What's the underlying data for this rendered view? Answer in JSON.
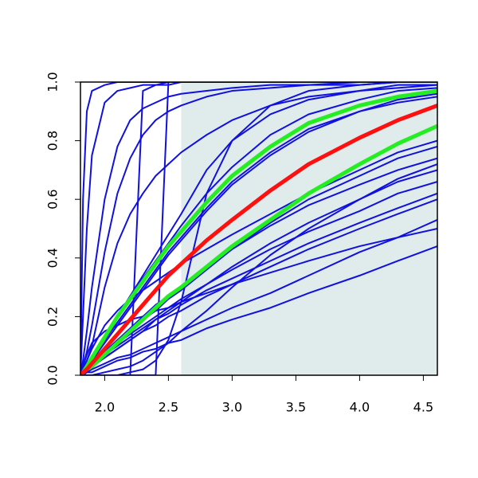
{
  "chart_data": {
    "type": "line",
    "x": [
      1.81,
      1.83,
      1.86,
      1.9,
      2.0,
      2.1,
      2.2,
      2.3,
      2.4,
      2.5,
      2.6,
      2.8,
      3.0,
      3.3,
      3.6,
      4.0,
      4.3,
      4.61
    ],
    "xlim": [
      1.81,
      4.61
    ],
    "ylim": [
      0,
      1
    ],
    "xticks": [
      {
        "value": 2,
        "label": "2.0"
      },
      {
        "value": 2.5,
        "label": "2.5"
      },
      {
        "value": 3,
        "label": "3.0"
      },
      {
        "value": 3.5,
        "label": "3.5"
      },
      {
        "value": 4,
        "label": "4.0"
      },
      {
        "value": 4.5,
        "label": "4.5"
      }
    ],
    "yticks": [
      {
        "value": 0,
        "label": "0.0"
      },
      {
        "value": 0.2,
        "label": "0.2"
      },
      {
        "value": 0.4,
        "label": "0.4"
      },
      {
        "value": 0.6,
        "label": "0.6"
      },
      {
        "value": 0.8,
        "label": "0.8"
      },
      {
        "value": 1,
        "label": "1.0"
      }
    ],
    "shade_from": 2.6,
    "shade_color": "#e0ebeb",
    "series": [
      {
        "color": "#1010e0",
        "line_width": 2,
        "values": [
          0,
          0.6,
          0.9,
          0.97,
          0.99,
          1,
          1,
          1,
          1,
          1,
          1,
          1,
          1,
          1,
          1,
          1,
          1,
          1
        ]
      },
      {
        "color": "#1010e0",
        "line_width": 2,
        "values": [
          0,
          0.2,
          0.5,
          0.75,
          0.93,
          0.97,
          0.98,
          0.99,
          0.99,
          0.99,
          1,
          1,
          1,
          1,
          1,
          1,
          1,
          1
        ]
      },
      {
        "color": "#1010e0",
        "line_width": 2,
        "values": [
          0,
          0.05,
          0.15,
          0.3,
          0.6,
          0.78,
          0.87,
          0.91,
          0.93,
          0.95,
          0.96,
          0.97,
          0.98,
          0.99,
          0.99,
          1,
          1,
          1
        ]
      },
      {
        "color": "#1010e0",
        "line_width": 2,
        "values": [
          0,
          0.03,
          0.08,
          0.17,
          0.42,
          0.62,
          0.74,
          0.82,
          0.87,
          0.9,
          0.92,
          0.95,
          0.97,
          0.98,
          0.99,
          0.99,
          1,
          1
        ]
      },
      {
        "color": "#1010e0",
        "line_width": 2,
        "values": [
          0,
          0,
          0,
          0,
          0,
          0,
          0,
          0.97,
          0.99,
          1,
          1,
          1,
          1,
          1,
          1,
          1,
          1,
          1
        ]
      },
      {
        "color": "#1010e0",
        "line_width": 2,
        "values": [
          0,
          0,
          0,
          0,
          0,
          0,
          0,
          0,
          0,
          1,
          1,
          1,
          1,
          1,
          1,
          1,
          1,
          1
        ]
      },
      {
        "color": "#1010e0",
        "line_width": 2,
        "values": [
          0,
          0,
          0,
          0,
          0,
          0,
          0.01,
          0.02,
          0.05,
          0.12,
          0.25,
          0.62,
          0.8,
          0.92,
          0.97,
          0.99,
          1,
          1
        ]
      },
      {
        "color": "#1010e0",
        "line_width": 2,
        "values": [
          0,
          0.01,
          0.03,
          0.06,
          0.13,
          0.2,
          0.27,
          0.34,
          0.41,
          0.48,
          0.55,
          0.7,
          0.8,
          0.89,
          0.94,
          0.97,
          0.99,
          0.99
        ]
      },
      {
        "color": "#1010e0",
        "line_width": 2,
        "values": [
          0,
          0.01,
          0.03,
          0.05,
          0.11,
          0.17,
          0.23,
          0.29,
          0.35,
          0.41,
          0.46,
          0.56,
          0.65,
          0.75,
          0.83,
          0.9,
          0.94,
          0.96
        ]
      },
      {
        "color": "#1010e0",
        "line_width": 2,
        "values": [
          0,
          0,
          0.01,
          0.01,
          0.03,
          0.05,
          0.06,
          0.08,
          0.09,
          0.11,
          0.12,
          0.16,
          0.19,
          0.23,
          0.28,
          0.34,
          0.39,
          0.44
        ]
      },
      {
        "color": "#1010e0",
        "line_width": 2,
        "values": [
          0,
          0,
          0.01,
          0.02,
          0.04,
          0.06,
          0.07,
          0.09,
          0.11,
          0.13,
          0.15,
          0.19,
          0.23,
          0.28,
          0.34,
          0.42,
          0.47,
          0.53
        ]
      },
      {
        "color": "#1010e0",
        "line_width": 2,
        "values": [
          0,
          0.01,
          0.02,
          0.03,
          0.06,
          0.09,
          0.12,
          0.15,
          0.17,
          0.2,
          0.22,
          0.27,
          0.31,
          0.37,
          0.43,
          0.5,
          0.55,
          0.6
        ]
      },
      {
        "color": "#1010e0",
        "line_width": 2,
        "values": [
          0,
          0.01,
          0.02,
          0.04,
          0.07,
          0.11,
          0.14,
          0.17,
          0.2,
          0.23,
          0.26,
          0.31,
          0.36,
          0.43,
          0.49,
          0.56,
          0.62,
          0.66
        ]
      },
      {
        "color": "#1010e0",
        "line_width": 2,
        "values": [
          0,
          0.01,
          0.02,
          0.03,
          0.06,
          0.09,
          0.12,
          0.15,
          0.19,
          0.22,
          0.25,
          0.31,
          0.37,
          0.45,
          0.52,
          0.6,
          0.66,
          0.7
        ]
      },
      {
        "color": "#1010e0",
        "line_width": 2,
        "values": [
          0,
          0.01,
          0.02,
          0.04,
          0.08,
          0.12,
          0.16,
          0.2,
          0.24,
          0.27,
          0.3,
          0.37,
          0.43,
          0.51,
          0.58,
          0.65,
          0.7,
          0.74
        ]
      },
      {
        "color": "#1010e0",
        "line_width": 2,
        "values": [
          0,
          0.01,
          0.02,
          0.04,
          0.08,
          0.11,
          0.15,
          0.19,
          0.22,
          0.26,
          0.29,
          0.36,
          0.43,
          0.52,
          0.6,
          0.68,
          0.74,
          0.78
        ]
      },
      {
        "color": "#1010e0",
        "line_width": 2,
        "values": [
          0,
          0.02,
          0.05,
          0.09,
          0.17,
          0.22,
          0.26,
          0.29,
          0.32,
          0.35,
          0.38,
          0.43,
          0.48,
          0.55,
          0.62,
          0.7,
          0.76,
          0.8
        ]
      },
      {
        "color": "#1010e0",
        "line_width": 2,
        "values": [
          0,
          0,
          0,
          0,
          0.01,
          0.02,
          0.03,
          0.05,
          0.08,
          0.11,
          0.15,
          0.22,
          0.3,
          0.41,
          0.5,
          0.6,
          0.67,
          0.72
        ]
      },
      {
        "color": "#1010e0",
        "line_width": 2,
        "values": [
          0,
          0.03,
          0.07,
          0.11,
          0.15,
          0.17,
          0.19,
          0.2,
          0.22,
          0.23,
          0.25,
          0.28,
          0.31,
          0.35,
          0.39,
          0.44,
          0.47,
          0.5
        ]
      },
      {
        "color": "#1010e0",
        "line_width": 2,
        "values": [
          0,
          0.01,
          0.03,
          0.06,
          0.12,
          0.18,
          0.24,
          0.3,
          0.36,
          0.42,
          0.47,
          0.57,
          0.66,
          0.76,
          0.84,
          0.9,
          0.93,
          0.95
        ]
      },
      {
        "color": "#1010e0",
        "line_width": 2,
        "values": [
          0,
          0.01,
          0.03,
          0.06,
          0.13,
          0.2,
          0.27,
          0.33,
          0.39,
          0.45,
          0.51,
          0.62,
          0.71,
          0.82,
          0.89,
          0.94,
          0.97,
          0.98
        ]
      },
      {
        "color": "#1010e0",
        "line_width": 2,
        "values": [
          0,
          0.02,
          0.05,
          0.1,
          0.3,
          0.45,
          0.55,
          0.62,
          0.68,
          0.72,
          0.76,
          0.82,
          0.87,
          0.92,
          0.95,
          0.97,
          0.98,
          0.99
        ]
      },
      {
        "color": "#1010e0",
        "line_width": 2,
        "values": [
          0,
          0.01,
          0.02,
          0.04,
          0.07,
          0.1,
          0.13,
          0.16,
          0.19,
          0.21,
          0.24,
          0.29,
          0.33,
          0.39,
          0.45,
          0.52,
          0.57,
          0.62
        ]
      },
      {
        "color": "#22ee22",
        "line_width": 5,
        "values": [
          0,
          0.01,
          0.03,
          0.06,
          0.13,
          0.2,
          0.26,
          0.32,
          0.38,
          0.44,
          0.49,
          0.59,
          0.68,
          0.78,
          0.86,
          0.92,
          0.95,
          0.97
        ]
      },
      {
        "color": "#22ee22",
        "line_width": 5,
        "values": [
          0,
          0.01,
          0.02,
          0.03,
          0.07,
          0.11,
          0.15,
          0.19,
          0.23,
          0.27,
          0.3,
          0.37,
          0.44,
          0.53,
          0.62,
          0.72,
          0.79,
          0.85
        ]
      },
      {
        "color": "#ff1010",
        "line_width": 5,
        "values": [
          0,
          0.01,
          0.02,
          0.04,
          0.09,
          0.14,
          0.19,
          0.24,
          0.29,
          0.34,
          0.38,
          0.46,
          0.53,
          0.63,
          0.72,
          0.81,
          0.87,
          0.92
        ]
      }
    ]
  }
}
